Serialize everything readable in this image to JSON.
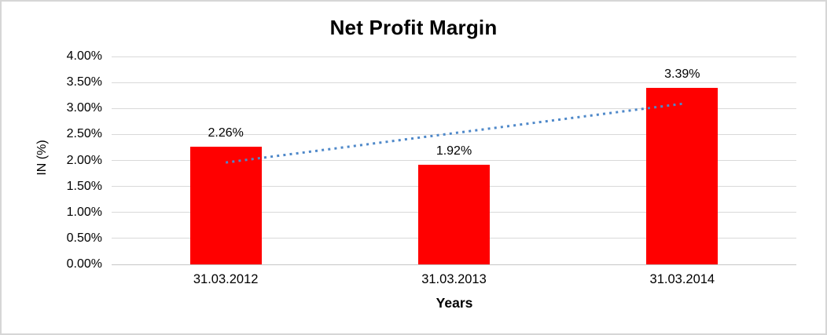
{
  "chart_data": {
    "type": "bar",
    "title": "Net Profit Margin",
    "xlabel": "Years",
    "ylabel": "IN (%)",
    "categories": [
      "31.03.2012",
      "31.03.2013",
      "31.03.2014"
    ],
    "values": [
      2.26,
      1.92,
      3.39
    ],
    "data_labels": [
      "2.26%",
      "1.92%",
      "3.39%"
    ],
    "y_ticks": [
      "4.00%",
      "3.50%",
      "3.00%",
      "2.50%",
      "2.00%",
      "1.50%",
      "1.00%",
      "0.50%",
      "0.00%"
    ],
    "ylim": [
      0,
      4
    ],
    "y_step": 0.5,
    "grid": true,
    "legend": "none",
    "bar_color": "#ff0000",
    "grid_color": "#d9d9d9",
    "axis_color": "#c6c6c6",
    "trendline": {
      "type": "linear",
      "style": "dotted",
      "color": "#4e88c9",
      "values_at_categories": [
        1.96,
        2.52,
        3.09
      ],
      "start_value": 1.96,
      "end_value": 3.09
    }
  }
}
